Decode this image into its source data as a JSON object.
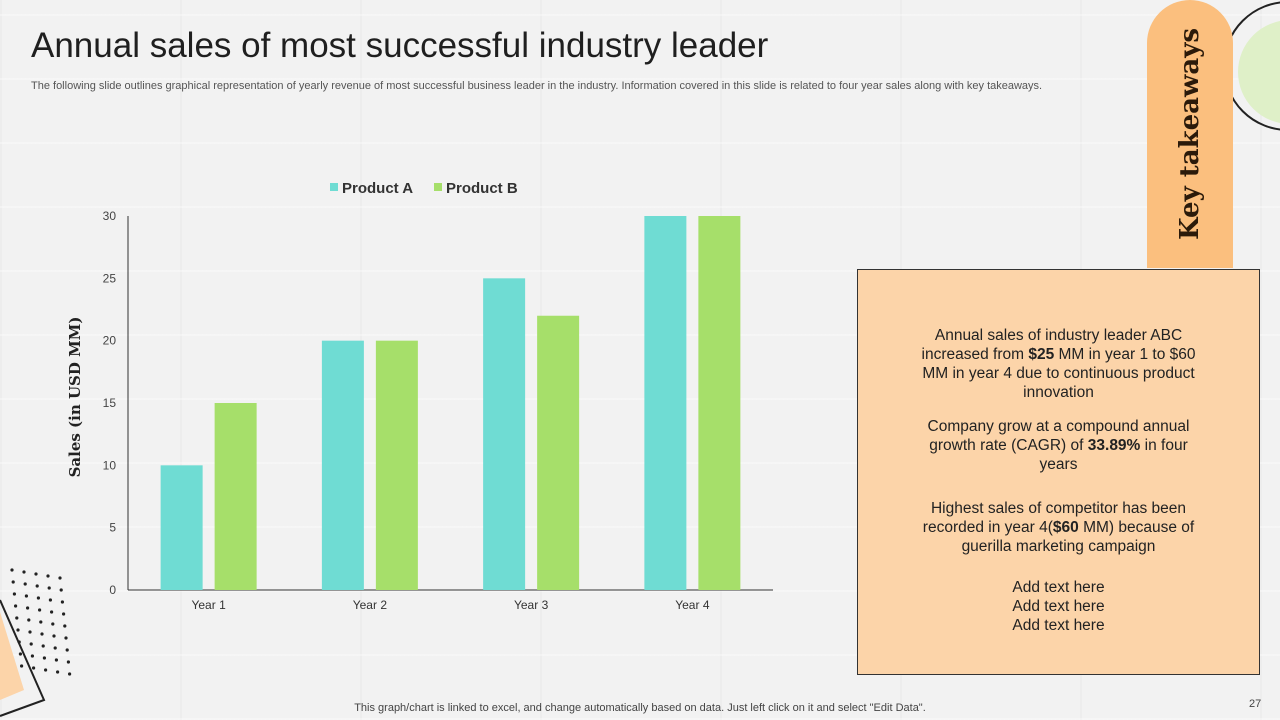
{
  "slide": {
    "title": "Annual sales of most successful industry leader",
    "subtitle": "The following slide outlines graphical representation of yearly revenue of most successful business leader in the industry. Information covered in this slide is related to four year sales along with key takeaways.",
    "footer": "This graph/chart is linked to excel, and change automatically based on data. Just left click on it and select \"Edit Data\".",
    "page_number": "27"
  },
  "takeaways": {
    "tab_label": "Key takeaways",
    "p1_a": "Annual sales of industry leader ABC increased from ",
    "p1_b": "$25",
    "p1_c": " MM in year 1 to $60 MM in year 4 due to continuous product innovation",
    "p2_a": "Company grow at a compound annual growth rate (CAGR) of ",
    "p2_b": "33.89%",
    "p2_c": " in four years",
    "p3_a": "Highest sales of competitor has been recorded in year 4(",
    "p3_b": "$60",
    "p3_c": " MM) because of guerilla marketing campaign",
    "add_text": [
      "Add text here",
      "Add text here",
      "Add text here"
    ]
  },
  "colors": {
    "product_a": "#6fdcd3",
    "product_b": "#a6df6a",
    "tab": "#fbbf7e",
    "panel": "#fcd4a9"
  },
  "chart_data": {
    "type": "bar",
    "categories": [
      "Year 1",
      "Year 2",
      "Year 3",
      "Year 4"
    ],
    "series": [
      {
        "name": "Product A",
        "values": [
          10,
          20,
          25,
          30
        ]
      },
      {
        "name": "Product B",
        "values": [
          15,
          20,
          22,
          30
        ]
      }
    ],
    "ylabel": "Sales (in USD MM)",
    "xlabel": "",
    "ylim": [
      0,
      30
    ],
    "yticks": [
      0,
      5,
      10,
      15,
      20,
      25,
      30
    ],
    "legend": "top",
    "grid": false
  }
}
